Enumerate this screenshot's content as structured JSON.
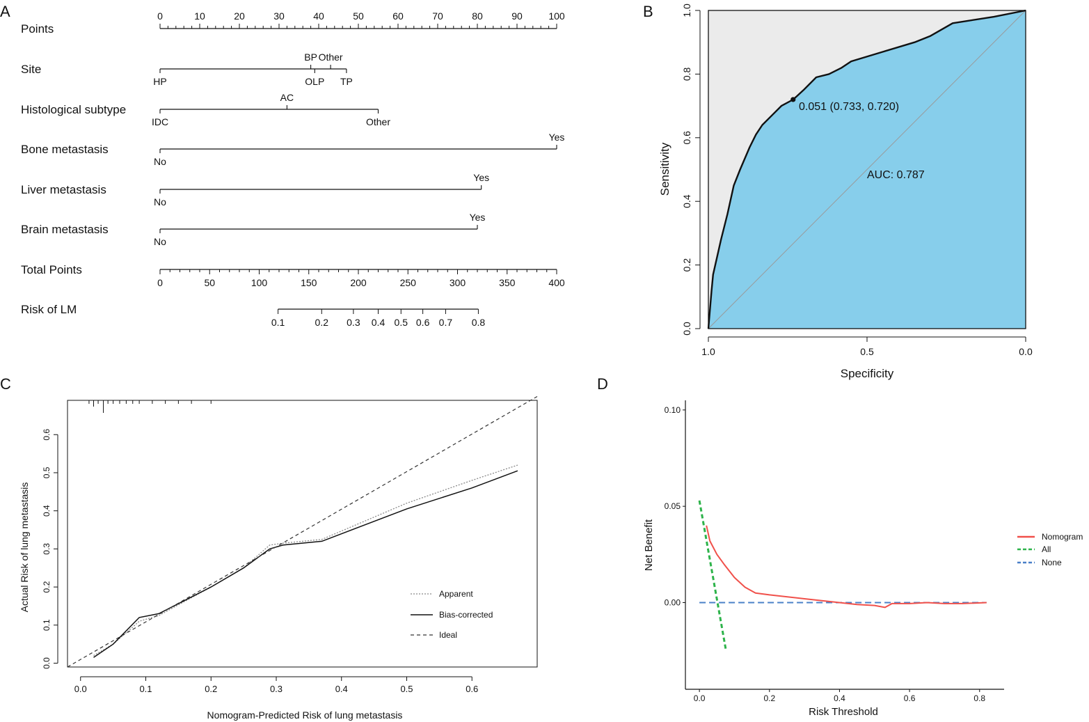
{
  "figure": {
    "panels": [
      "A",
      "B",
      "C",
      "D"
    ]
  },
  "chart_data": [
    {
      "panel": "A",
      "type": "nomogram",
      "points_axis": {
        "label": "Points",
        "ticks": [
          0,
          10,
          20,
          30,
          40,
          50,
          60,
          70,
          80,
          90,
          100
        ],
        "min": 0,
        "max": 100
      },
      "variables": [
        {
          "name": "Site",
          "levels": [
            {
              "label": "HP",
              "points": 0,
              "pos": "below"
            },
            {
              "label": "BP",
              "points": 38,
              "pos": "above"
            },
            {
              "label": "OLP",
              "points": 39,
              "pos": "below"
            },
            {
              "label": "Other",
              "points": 43,
              "pos": "above"
            },
            {
              "label": "TP",
              "points": 47,
              "pos": "below"
            }
          ]
        },
        {
          "name": "Histological subtype",
          "levels": [
            {
              "label": "IDC",
              "points": 0,
              "pos": "below"
            },
            {
              "label": "AC",
              "points": 32,
              "pos": "above"
            },
            {
              "label": "Other",
              "points": 55,
              "pos": "below"
            }
          ]
        },
        {
          "name": "Bone metastasis",
          "levels": [
            {
              "label": "No",
              "points": 0,
              "pos": "below"
            },
            {
              "label": "Yes",
              "points": 100,
              "pos": "above"
            }
          ]
        },
        {
          "name": "Liver metastasis",
          "levels": [
            {
              "label": "No",
              "points": 0,
              "pos": "below"
            },
            {
              "label": "Yes",
              "points": 81,
              "pos": "above"
            }
          ]
        },
        {
          "name": "Brain metastasis",
          "levels": [
            {
              "label": "No",
              "points": 0,
              "pos": "below"
            },
            {
              "label": "Yes",
              "points": 80,
              "pos": "above"
            }
          ]
        }
      ],
      "total_points_axis": {
        "label": "Total Points",
        "ticks": [
          0,
          50,
          100,
          150,
          200,
          250,
          300,
          350,
          400
        ],
        "min": 0,
        "max": 400
      },
      "risk_axis": {
        "label": "Risk of LM",
        "ticks": [
          {
            "label": "0.1",
            "total": 119
          },
          {
            "label": "0.2",
            "total": 163
          },
          {
            "label": "0.3",
            "total": 195
          },
          {
            "label": "0.4",
            "total": 220
          },
          {
            "label": "0.5",
            "total": 243
          },
          {
            "label": "0.6",
            "total": 265
          },
          {
            "label": "0.7",
            "total": 288
          },
          {
            "label": "0.8",
            "total": 321
          }
        ]
      }
    },
    {
      "panel": "B",
      "type": "line",
      "title": "",
      "xlabel": "Specificity",
      "ylabel": "Sensitivity",
      "xlim": [
        1.0,
        0.0
      ],
      "ylim": [
        0.0,
        1.0
      ],
      "xticks": [
        "1.0",
        "0.5",
        "0.0"
      ],
      "yticks": [
        "0.0",
        "0.2",
        "0.4",
        "0.6",
        "0.8",
        "1.0"
      ],
      "auc_label": "AUC: 0.787",
      "threshold_label": "0.051 (0.733, 0.720)",
      "threshold_point": {
        "specificity": 0.733,
        "sensitivity": 0.72
      },
      "colors": {
        "auc_fill": "#87ceeb",
        "upper_fill": "#ebebeb"
      },
      "roc": [
        [
          1.0,
          0.0
        ],
        [
          0.99,
          0.12
        ],
        [
          0.985,
          0.17
        ],
        [
          0.96,
          0.28
        ],
        [
          0.94,
          0.36
        ],
        [
          0.92,
          0.45
        ],
        [
          0.9,
          0.5
        ],
        [
          0.87,
          0.57
        ],
        [
          0.85,
          0.61
        ],
        [
          0.83,
          0.64
        ],
        [
          0.8,
          0.67
        ],
        [
          0.77,
          0.7
        ],
        [
          0.733,
          0.72
        ],
        [
          0.7,
          0.75
        ],
        [
          0.66,
          0.79
        ],
        [
          0.62,
          0.8
        ],
        [
          0.58,
          0.82
        ],
        [
          0.55,
          0.84
        ],
        [
          0.45,
          0.87
        ],
        [
          0.35,
          0.9
        ],
        [
          0.3,
          0.92
        ],
        [
          0.23,
          0.96
        ],
        [
          0.1,
          0.98
        ],
        [
          0.0,
          1.0
        ]
      ]
    },
    {
      "panel": "C",
      "type": "line",
      "title": "",
      "xlabel": "Nomogram-Predicted Risk of lung metastasis",
      "ylabel": "Actual Risk of lung metastasis",
      "xlim": [
        -0.02,
        0.7
      ],
      "ylim": [
        -0.01,
        0.69
      ],
      "xticks": [
        "0.0",
        "0.1",
        "0.2",
        "0.3",
        "0.4",
        "0.5",
        "0.6"
      ],
      "yticks": [
        "0.0",
        "0.1",
        "0.2",
        "0.3",
        "0.4",
        "0.5",
        "0.6"
      ],
      "series": [
        {
          "name": "Apparent",
          "style": "dotted",
          "points": [
            [
              0.02,
              0.02
            ],
            [
              0.05,
              0.05
            ],
            [
              0.09,
              0.11
            ],
            [
              0.12,
              0.125
            ],
            [
              0.2,
              0.2
            ],
            [
              0.25,
              0.25
            ],
            [
              0.29,
              0.31
            ],
            [
              0.31,
              0.315
            ],
            [
              0.37,
              0.325
            ],
            [
              0.5,
              0.42
            ],
            [
              0.6,
              0.48
            ],
            [
              0.67,
              0.52
            ]
          ]
        },
        {
          "name": "Bias-corrected",
          "style": "solid",
          "points": [
            [
              0.02,
              0.015
            ],
            [
              0.05,
              0.05
            ],
            [
              0.09,
              0.12
            ],
            [
              0.12,
              0.13
            ],
            [
              0.2,
              0.2
            ],
            [
              0.25,
              0.25
            ],
            [
              0.29,
              0.3
            ],
            [
              0.31,
              0.31
            ],
            [
              0.37,
              0.32
            ],
            [
              0.5,
              0.405
            ],
            [
              0.6,
              0.46
            ],
            [
              0.67,
              0.505
            ]
          ]
        },
        {
          "name": "Ideal",
          "style": "dashed",
          "points": [
            [
              -0.02,
              -0.01
            ],
            [
              0.7,
              0.7
            ]
          ]
        }
      ],
      "rug": [
        0.013,
        0.02,
        0.027,
        0.035,
        0.042,
        0.05,
        0.06,
        0.07,
        0.08,
        0.09,
        0.11,
        0.13,
        0.15,
        0.17,
        0.2
      ]
    },
    {
      "panel": "D",
      "type": "line",
      "title": "",
      "xlabel": "Risk Threshold",
      "ylabel": "Net Benefit",
      "xlim": [
        -0.04,
        0.87
      ],
      "ylim": [
        -0.045,
        0.105
      ],
      "xticks": [
        "0.0",
        "0.2",
        "0.4",
        "0.6",
        "0.8"
      ],
      "yticks": [
        "0.00",
        "0.05",
        "0.10"
      ],
      "series": [
        {
          "name": "Nomogram",
          "color": "#f0504a",
          "style": "solid",
          "points": [
            [
              0.02,
              0.04
            ],
            [
              0.03,
              0.032
            ],
            [
              0.05,
              0.025
            ],
            [
              0.07,
              0.02
            ],
            [
              0.1,
              0.013
            ],
            [
              0.13,
              0.008
            ],
            [
              0.16,
              0.005
            ],
            [
              0.2,
              0.004
            ],
            [
              0.3,
              0.002
            ],
            [
              0.4,
              0.0
            ],
            [
              0.45,
              -0.001
            ],
            [
              0.5,
              -0.0015
            ],
            [
              0.53,
              -0.0025
            ],
            [
              0.55,
              -0.0005
            ],
            [
              0.6,
              -0.0005
            ],
            [
              0.65,
              0.0
            ],
            [
              0.7,
              -0.0005
            ],
            [
              0.75,
              -0.0005
            ],
            [
              0.82,
              0.0
            ]
          ]
        },
        {
          "name": "All",
          "color": "#2db34a",
          "style": "dashed",
          "points": [
            [
              0.0,
              0.053
            ],
            [
              0.075,
              -0.024
            ]
          ]
        },
        {
          "name": "None",
          "color": "#4a80c8",
          "style": "dashed",
          "points": [
            [
              0.0,
              0.0
            ],
            [
              0.82,
              0.0
            ]
          ]
        }
      ]
    }
  ]
}
